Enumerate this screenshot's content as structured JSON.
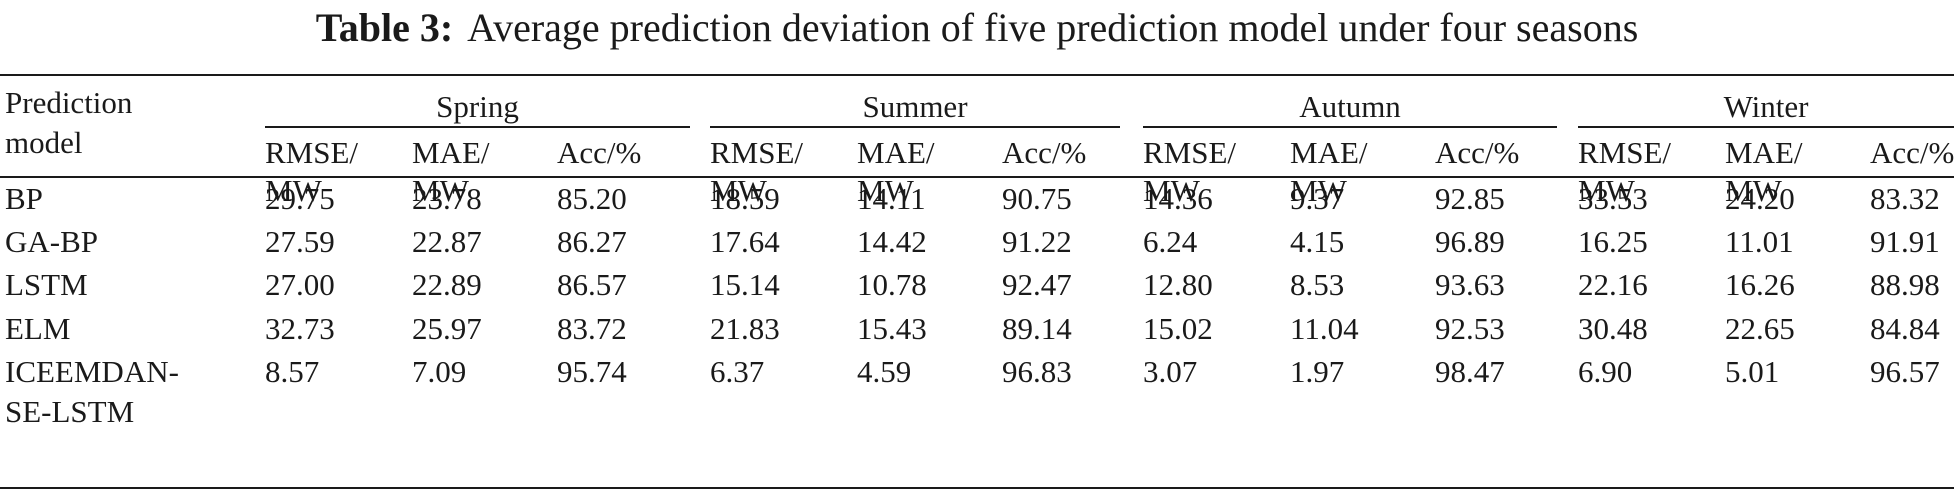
{
  "table": {
    "caption_label": "Table 3:",
    "caption_text": "Average prediction deviation of five prediction model under four seasons",
    "stub_header_line1": "Prediction",
    "stub_header_line2": "model",
    "seasons": [
      "Spring",
      "Summer",
      "Autumn",
      "Winter"
    ],
    "metric_headers": [
      {
        "line1": "RMSE/",
        "line2": "MW"
      },
      {
        "line1": "MAE/",
        "line2": "MW"
      },
      {
        "line1": "Acc/%",
        "line2": ""
      }
    ],
    "rows": [
      {
        "model_line1": "BP",
        "model_line2": "",
        "values": [
          "29.75",
          "23.78",
          "85.20",
          "18.59",
          "14.11",
          "90.75",
          "14.36",
          "9.37",
          "92.85",
          "33.53",
          "24.20",
          "83.32"
        ]
      },
      {
        "model_line1": "GA-BP",
        "model_line2": "",
        "values": [
          "27.59",
          "22.87",
          "86.27",
          "17.64",
          "14.42",
          "91.22",
          "6.24",
          "4.15",
          "96.89",
          "16.25",
          "11.01",
          "91.91"
        ]
      },
      {
        "model_line1": "LSTM",
        "model_line2": "",
        "values": [
          "27.00",
          "22.89",
          "86.57",
          "15.14",
          "10.78",
          "92.47",
          "12.80",
          "8.53",
          "93.63",
          "22.16",
          "16.26",
          "88.98"
        ]
      },
      {
        "model_line1": "ELM",
        "model_line2": "",
        "values": [
          "32.73",
          "25.97",
          "83.72",
          "21.83",
          "15.43",
          "89.14",
          "15.02",
          "11.04",
          "92.53",
          "30.48",
          "22.65",
          "84.84"
        ]
      },
      {
        "model_line1": "ICEEMDAN-",
        "model_line2": "SE-LSTM",
        "values": [
          "8.57",
          "7.09",
          "95.74",
          "6.37",
          "4.59",
          "96.83",
          "3.07",
          "1.97",
          "98.47",
          "6.90",
          "5.01",
          "96.57"
        ]
      }
    ]
  }
}
